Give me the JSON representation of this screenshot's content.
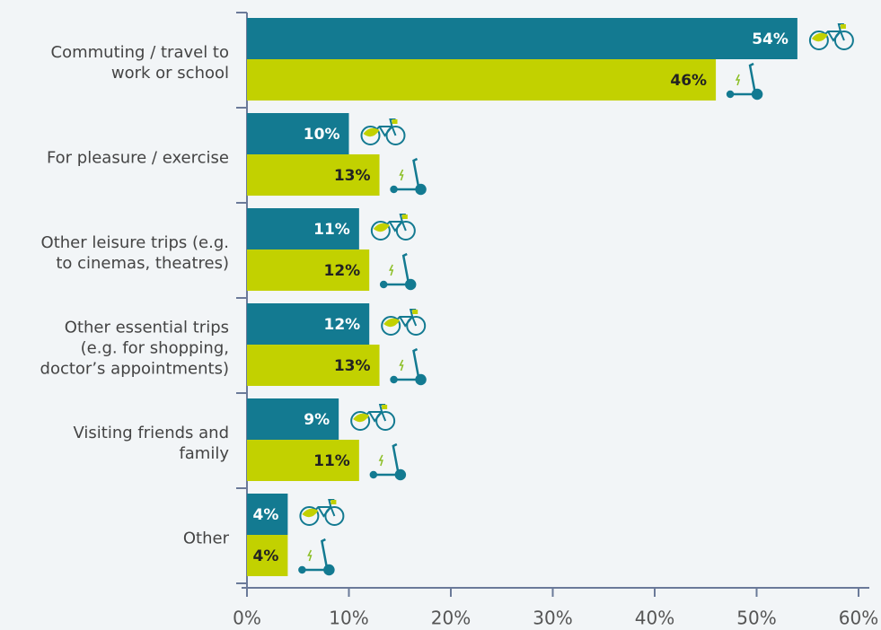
{
  "chart_data": {
    "type": "hbar",
    "categories": [
      "Commuting / travel to\nwork or school",
      "For pleasure / exercise",
      "Other leisure trips (e.g.\nto cinemas, theatres)",
      "Other essential trips\n(e.g. for shopping,\ndoctor’s appointments)",
      "Visiting friends and\nfamily",
      "Other"
    ],
    "series": [
      {
        "color": "#137a91",
        "values": [
          54,
          10,
          11,
          12,
          9,
          4
        ],
        "value_labels": [
          "54%",
          "10%",
          "11%",
          "12%",
          "9%",
          "4%"
        ]
      },
      {
        "color": "#c2d100",
        "values": [
          46,
          13,
          12,
          13,
          11,
          4
        ],
        "value_labels": [
          "46%",
          "13%",
          "12%",
          "13%",
          "11%",
          "4%"
        ]
      }
    ],
    "xlim": [
      0,
      60
    ],
    "xticks": [
      {
        "value": 0,
        "label": "0%"
      },
      {
        "value": 10,
        "label": "10%"
      },
      {
        "value": 20,
        "label": "20%"
      },
      {
        "value": 30,
        "label": "30%"
      },
      {
        "value": 40,
        "label": "40%"
      },
      {
        "value": 50,
        "label": "50%"
      },
      {
        "value": 60,
        "label": "60%"
      }
    ]
  }
}
